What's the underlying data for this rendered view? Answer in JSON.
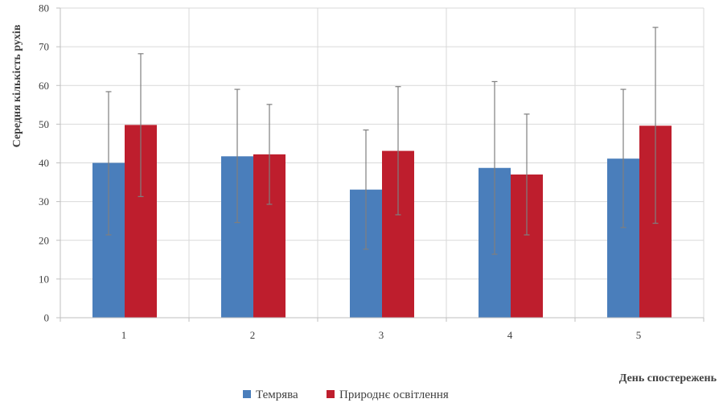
{
  "chart_data": {
    "type": "bar",
    "categories": [
      "1",
      "2",
      "3",
      "4",
      "5"
    ],
    "series": [
      {
        "name": "Темрява",
        "color": "#4a7ebb",
        "values": [
          40,
          41.7,
          33.1,
          38.7,
          41.1
        ],
        "error_low": [
          21.4,
          24.6,
          17.7,
          16.4,
          23.3
        ],
        "error_high": [
          58.4,
          59,
          48.5,
          61,
          59
        ]
      },
      {
        "name": "Природнє освітлення",
        "color": "#be1e2d",
        "values": [
          49.8,
          42.2,
          43.1,
          37,
          49.6
        ],
        "error_low": [
          31.3,
          29.3,
          26.6,
          21.4,
          24.4
        ],
        "error_high": [
          68.2,
          55.1,
          59.7,
          52.6,
          75
        ]
      }
    ],
    "ylim": [
      0,
      80
    ],
    "yticks": [
      0,
      10,
      20,
      30,
      40,
      50,
      60,
      70,
      80
    ],
    "xlabel": "День спостережень",
    "ylabel": "Середня кількість рухів",
    "grid": true,
    "legend_position": "bottom",
    "error_bar_color": "#7f7f7f",
    "grid_color": "#d9d9d9",
    "axis_color": "#bfbfbf"
  }
}
